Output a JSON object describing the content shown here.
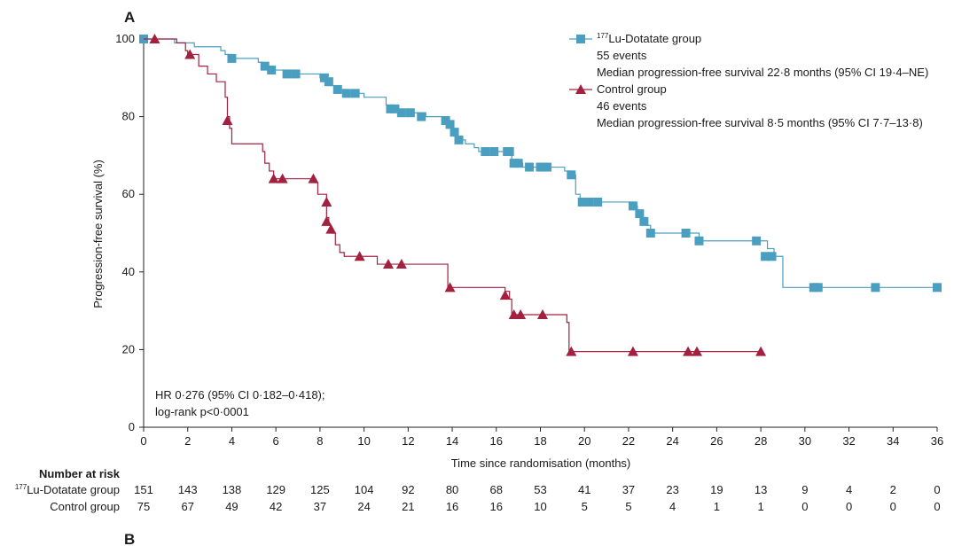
{
  "figure": {
    "panel_label": "A",
    "next_panel_label": "B"
  },
  "chart_data": {
    "type": "line",
    "subtype": "kaplan-meier",
    "xlabel": "Time since randomisation (months)",
    "ylabel": "Progression-free survival (%)",
    "xlim": [
      0,
      36
    ],
    "ylim": [
      0,
      100
    ],
    "xticks": [
      0,
      2,
      4,
      6,
      8,
      10,
      12,
      14,
      16,
      18,
      20,
      22,
      24,
      26,
      28,
      30,
      32,
      34,
      36
    ],
    "yticks": [
      0,
      20,
      40,
      60,
      80,
      100
    ],
    "grid": false,
    "legend_position": "top-right",
    "series": [
      {
        "name": "Lu-Dotatate group",
        "name_sup": "177",
        "name_main": "Lu-Dotatate group",
        "color": "#4a9fc0",
        "marker": "square",
        "events_text": "55 events",
        "median_text": "Median progression-free survival 22·8 months (95% CI 19·4–NE)",
        "steps": [
          [
            0,
            100
          ],
          [
            1.4,
            99
          ],
          [
            2.3,
            98
          ],
          [
            3.5,
            97
          ],
          [
            3.7,
            96
          ],
          [
            4.0,
            95
          ],
          [
            5.2,
            94
          ],
          [
            5.4,
            93
          ],
          [
            5.8,
            92
          ],
          [
            6.4,
            91
          ],
          [
            8.0,
            90
          ],
          [
            8.3,
            89
          ],
          [
            8.4,
            88
          ],
          [
            8.8,
            87
          ],
          [
            9.2,
            86
          ],
          [
            10.0,
            85
          ],
          [
            11.0,
            83
          ],
          [
            11.2,
            82
          ],
          [
            11.5,
            81
          ],
          [
            12.8,
            80
          ],
          [
            13.6,
            79
          ],
          [
            13.8,
            78
          ],
          [
            14.0,
            77
          ],
          [
            14.1,
            75
          ],
          [
            14.2,
            74
          ],
          [
            14.6,
            73
          ],
          [
            15.0,
            72
          ],
          [
            15.2,
            71
          ],
          [
            16.6,
            70
          ],
          [
            16.7,
            69
          ],
          [
            16.8,
            68
          ],
          [
            17.2,
            67
          ],
          [
            19.1,
            66
          ],
          [
            19.4,
            65
          ],
          [
            19.6,
            60
          ],
          [
            19.8,
            58
          ],
          [
            22.2,
            57
          ],
          [
            22.4,
            55
          ],
          [
            22.6,
            54
          ],
          [
            22.8,
            52
          ],
          [
            23.0,
            50
          ],
          [
            25.2,
            48
          ],
          [
            28.3,
            46
          ],
          [
            28.6,
            44
          ],
          [
            29.0,
            36
          ],
          [
            36,
            36
          ]
        ],
        "censors": [
          [
            0,
            100
          ],
          [
            4.0,
            95
          ],
          [
            5.5,
            93
          ],
          [
            5.8,
            92
          ],
          [
            6.5,
            91
          ],
          [
            6.9,
            91
          ],
          [
            8.2,
            90
          ],
          [
            8.4,
            89
          ],
          [
            8.8,
            87
          ],
          [
            9.2,
            86
          ],
          [
            9.6,
            86
          ],
          [
            11.2,
            82
          ],
          [
            11.4,
            82
          ],
          [
            11.7,
            81
          ],
          [
            12.1,
            81
          ],
          [
            12.6,
            80
          ],
          [
            13.7,
            79
          ],
          [
            13.9,
            78
          ],
          [
            14.1,
            76
          ],
          [
            14.3,
            74
          ],
          [
            15.5,
            71
          ],
          [
            15.9,
            71
          ],
          [
            16.5,
            71
          ],
          [
            16.6,
            71
          ],
          [
            16.8,
            68
          ],
          [
            17.0,
            68
          ],
          [
            17.5,
            67
          ],
          [
            18.0,
            67
          ],
          [
            18.3,
            67
          ],
          [
            19.4,
            65
          ],
          [
            19.9,
            58
          ],
          [
            20.2,
            58
          ],
          [
            20.6,
            58
          ],
          [
            22.2,
            57
          ],
          [
            22.5,
            55
          ],
          [
            22.7,
            53
          ],
          [
            23.0,
            50
          ],
          [
            24.6,
            50
          ],
          [
            25.2,
            48
          ],
          [
            27.8,
            48
          ],
          [
            28.2,
            44
          ],
          [
            28.5,
            44
          ],
          [
            30.4,
            36
          ],
          [
            30.6,
            36
          ],
          [
            33.2,
            36
          ],
          [
            36,
            36
          ]
        ]
      },
      {
        "name": "Control group",
        "name_sup": "",
        "name_main": "Control group",
        "color": "#a3203f",
        "marker": "triangle",
        "events_text": "46 events",
        "median_text": "Median progression-free survival 8·5 months (95% CI 7·7–13·8)",
        "steps": [
          [
            0,
            100
          ],
          [
            1.5,
            99
          ],
          [
            1.9,
            97
          ],
          [
            2.0,
            96
          ],
          [
            2.5,
            93
          ],
          [
            2.9,
            91
          ],
          [
            3.3,
            89
          ],
          [
            3.7,
            85
          ],
          [
            3.8,
            80
          ],
          [
            3.9,
            77
          ],
          [
            4.0,
            73
          ],
          [
            5.4,
            71
          ],
          [
            5.5,
            68
          ],
          [
            5.7,
            66
          ],
          [
            5.9,
            64
          ],
          [
            7.7,
            63
          ],
          [
            7.9,
            60
          ],
          [
            8.3,
            57
          ],
          [
            8.3,
            54
          ],
          [
            8.4,
            52
          ],
          [
            8.5,
            50
          ],
          [
            8.7,
            47
          ],
          [
            8.9,
            45
          ],
          [
            9.1,
            44
          ],
          [
            9.8,
            44
          ],
          [
            10.6,
            42
          ],
          [
            13.8,
            40
          ],
          [
            13.8,
            36
          ],
          [
            16.4,
            35
          ],
          [
            16.6,
            33
          ],
          [
            16.7,
            29
          ],
          [
            19.2,
            27
          ],
          [
            19.3,
            19.5
          ],
          [
            28,
            19.5
          ]
        ],
        "censors": [
          [
            0.5,
            100
          ],
          [
            2.1,
            96
          ],
          [
            3.8,
            79
          ],
          [
            5.9,
            64
          ],
          [
            6.3,
            64
          ],
          [
            7.7,
            64
          ],
          [
            8.3,
            58
          ],
          [
            8.3,
            53
          ],
          [
            8.5,
            51
          ],
          [
            9.8,
            44
          ],
          [
            11.1,
            42
          ],
          [
            11.7,
            42
          ],
          [
            13.9,
            36
          ],
          [
            16.4,
            34
          ],
          [
            16.8,
            29
          ],
          [
            17.1,
            29
          ],
          [
            18.1,
            29
          ],
          [
            19.4,
            19.5
          ],
          [
            22.2,
            19.5
          ],
          [
            24.7,
            19.5
          ],
          [
            25.1,
            19.5
          ],
          [
            28,
            19.5
          ]
        ]
      }
    ],
    "annotation": {
      "line1": "HR 0·276 (95% CI 0·182–0·418);",
      "line2": "log-rank p<0·0001"
    },
    "risk_table": {
      "title": "Number at risk",
      "rows": [
        {
          "label_sup": "177",
          "label_main": "Lu-Dotatate group",
          "values": [
            "151",
            "143",
            "138",
            "129",
            "125",
            "104",
            "92",
            "80",
            "68",
            "53",
            "41",
            "37",
            "23",
            "19",
            "13",
            "9",
            "4",
            "2",
            "0"
          ]
        },
        {
          "label_sup": "",
          "label_main": "Control group",
          "values": [
            "75",
            "67",
            "49",
            "42",
            "37",
            "24",
            "21",
            "16",
            "16",
            "10",
            "5",
            "5",
            "4",
            "1",
            "1",
            "0",
            "0",
            "0",
            "0"
          ]
        }
      ]
    }
  }
}
